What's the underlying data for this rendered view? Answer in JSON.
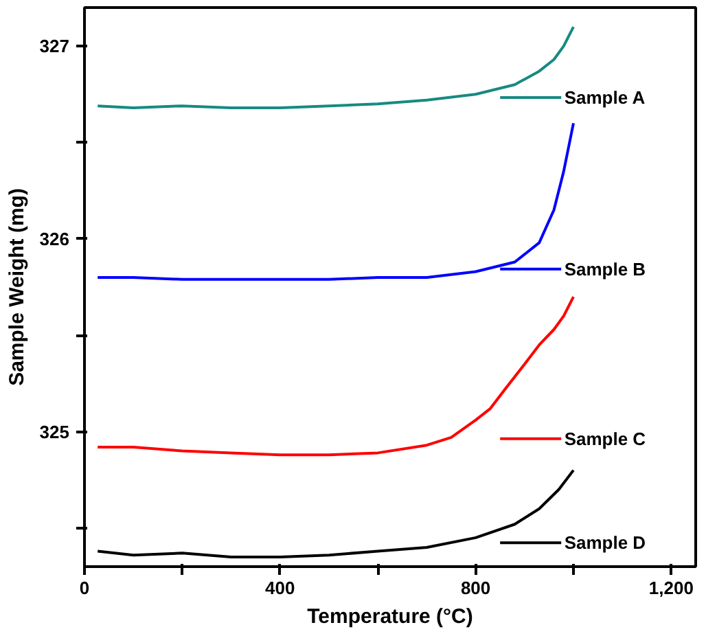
{
  "chart_data": {
    "type": "line",
    "xlabel": "Temperature (°C)",
    "ylabel": "Sample Weight (mg)",
    "xlim": [
      0,
      1250
    ],
    "ylim": [
      324.3,
      327.2
    ],
    "xticks": [
      0,
      {
        "value": 200,
        "label": null
      },
      400,
      {
        "value": 600,
        "label": null
      },
      800,
      {
        "value": 1000,
        "label": null
      },
      {
        "value": 1200,
        "label": "1,200"
      }
    ],
    "yticks": [
      {
        "value": 324.5,
        "label": null
      },
      325,
      {
        "value": 325.5,
        "label": null
      },
      326,
      {
        "value": 326.5,
        "label": null
      },
      327
    ],
    "grid": false,
    "legend": "right",
    "marker": "none",
    "line_style": "solid",
    "series": [
      {
        "name": "Sample A",
        "color": "#168a82",
        "x": [
          27,
          100,
          200,
          300,
          400,
          500,
          600,
          700,
          800,
          880,
          930,
          960,
          980,
          1000
        ],
        "values": [
          326.69,
          326.68,
          326.69,
          326.68,
          326.68,
          326.69,
          326.7,
          326.72,
          326.75,
          326.8,
          326.87,
          326.93,
          327.0,
          327.1
        ]
      },
      {
        "name": "Sample B",
        "color": "#0000ff",
        "x": [
          27,
          100,
          200,
          300,
          400,
          500,
          600,
          700,
          800,
          880,
          930,
          960,
          980,
          1000
        ],
        "values": [
          325.8,
          325.8,
          325.79,
          325.79,
          325.79,
          325.79,
          325.8,
          325.8,
          325.83,
          325.88,
          325.98,
          326.15,
          326.35,
          326.6
        ]
      },
      {
        "name": "Sample C",
        "color": "#ff0000",
        "x": [
          27,
          100,
          200,
          300,
          400,
          500,
          600,
          700,
          750,
          800,
          830,
          860,
          900,
          930,
          960,
          980,
          1000
        ],
        "values": [
          324.92,
          324.92,
          324.9,
          324.89,
          324.88,
          324.88,
          324.89,
          324.93,
          324.97,
          325.06,
          325.12,
          325.22,
          325.35,
          325.45,
          325.53,
          325.6,
          325.7
        ]
      },
      {
        "name": "Sample D",
        "color": "#000000",
        "x": [
          27,
          100,
          200,
          300,
          400,
          500,
          600,
          700,
          800,
          880,
          930,
          970,
          1000
        ],
        "values": [
          324.38,
          324.36,
          324.37,
          324.35,
          324.35,
          324.36,
          324.38,
          324.4,
          324.45,
          324.52,
          324.6,
          324.7,
          324.8
        ]
      }
    ]
  }
}
